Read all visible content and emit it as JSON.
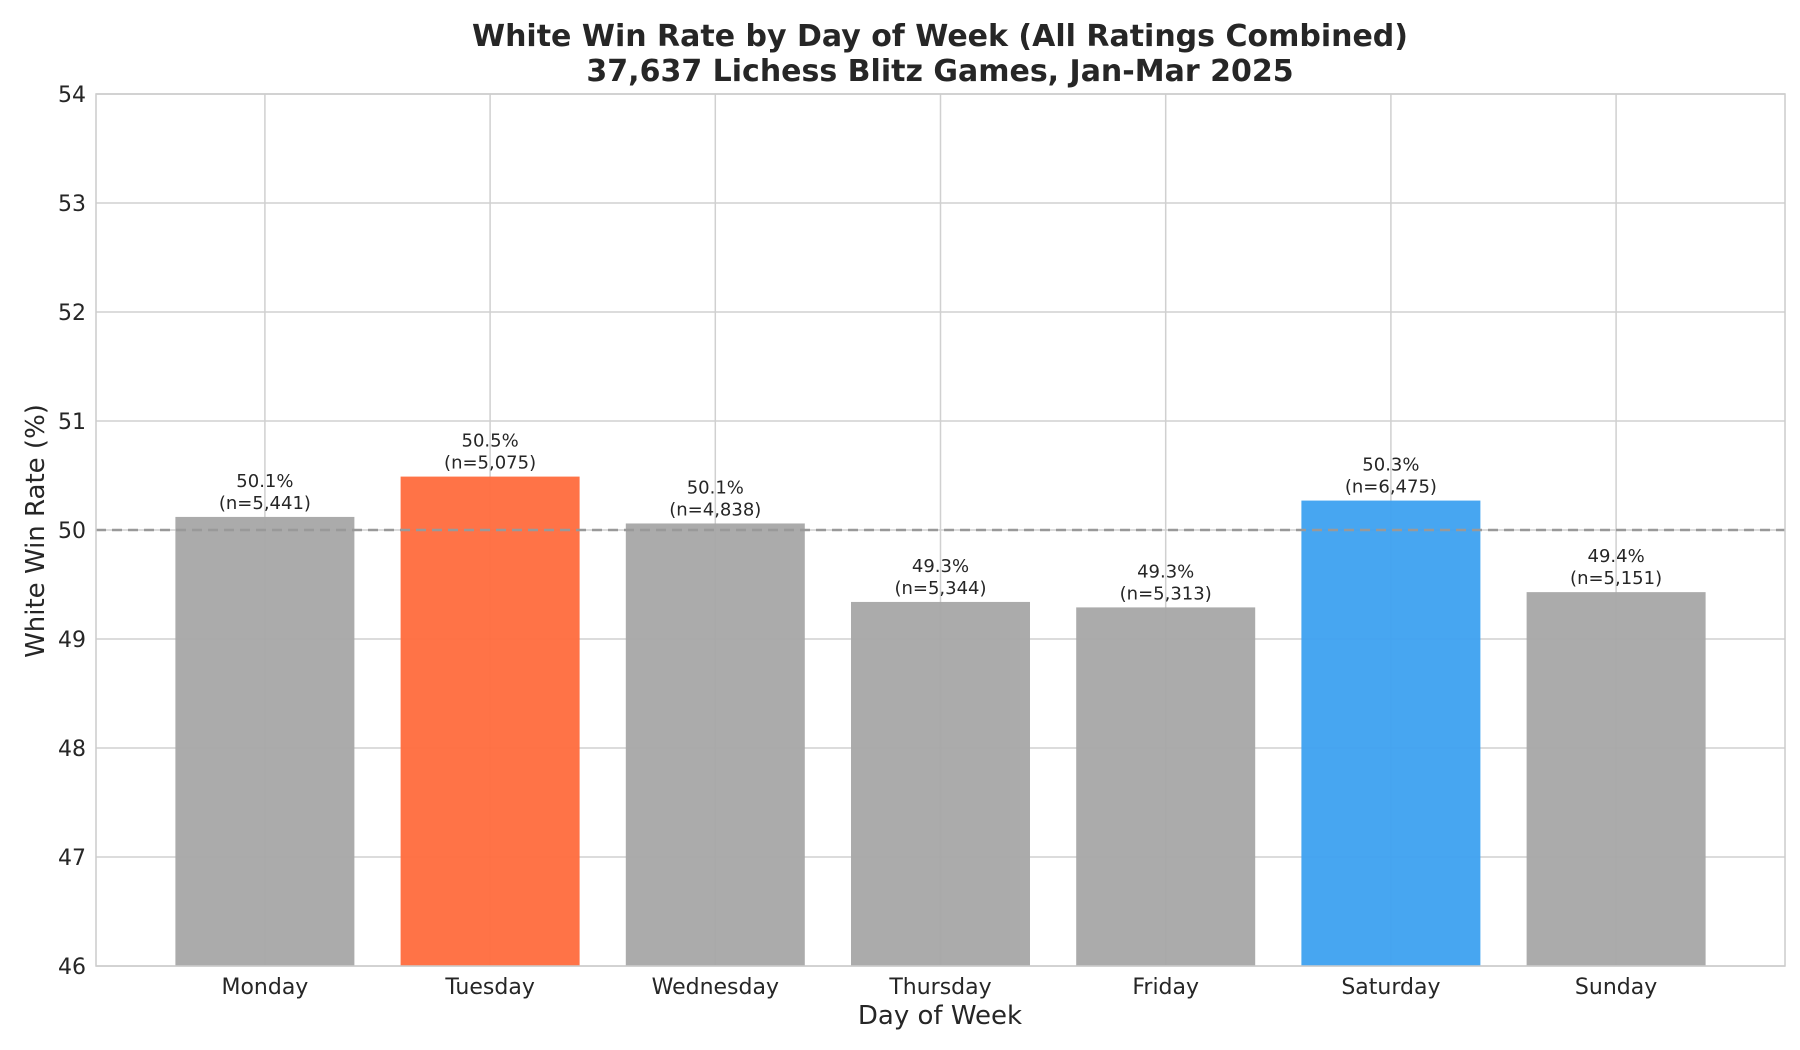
{
  "chart_data": {
    "type": "bar",
    "title": "White Win Rate by Day of Week (All Ratings Combined)",
    "subtitle": "37,637 Lichess Blitz Games, Jan-Mar 2025",
    "xlabel": "Day of Week",
    "ylabel": "White Win Rate (%)",
    "ylim": [
      46,
      54
    ],
    "yticks": [
      "46",
      "47",
      "48",
      "49",
      "50",
      "51",
      "52",
      "53",
      "54"
    ],
    "categories": [
      "Monday",
      "Tuesday",
      "Wednesday",
      "Thursday",
      "Friday",
      "Saturday",
      "Sunday"
    ],
    "values": [
      50.12,
      50.49,
      50.06,
      49.34,
      49.29,
      50.27,
      49.43
    ],
    "value_labels": [
      "50.1%",
      "50.5%",
      "50.1%",
      "49.3%",
      "49.3%",
      "50.3%",
      "49.4%"
    ],
    "count_labels": [
      "(n=5,441)",
      "(n=5,075)",
      "(n=4,838)",
      "(n=5,344)",
      "(n=5,313)",
      "(n=6,475)",
      "(n=5,151)"
    ],
    "bar_colors": [
      "#a6a6a6",
      "#ff6b3d",
      "#a6a6a6",
      "#a6a6a6",
      "#a6a6a6",
      "#3da1f0",
      "#a6a6a6"
    ],
    "reference_line": 50,
    "grid": true,
    "legend": "none"
  }
}
